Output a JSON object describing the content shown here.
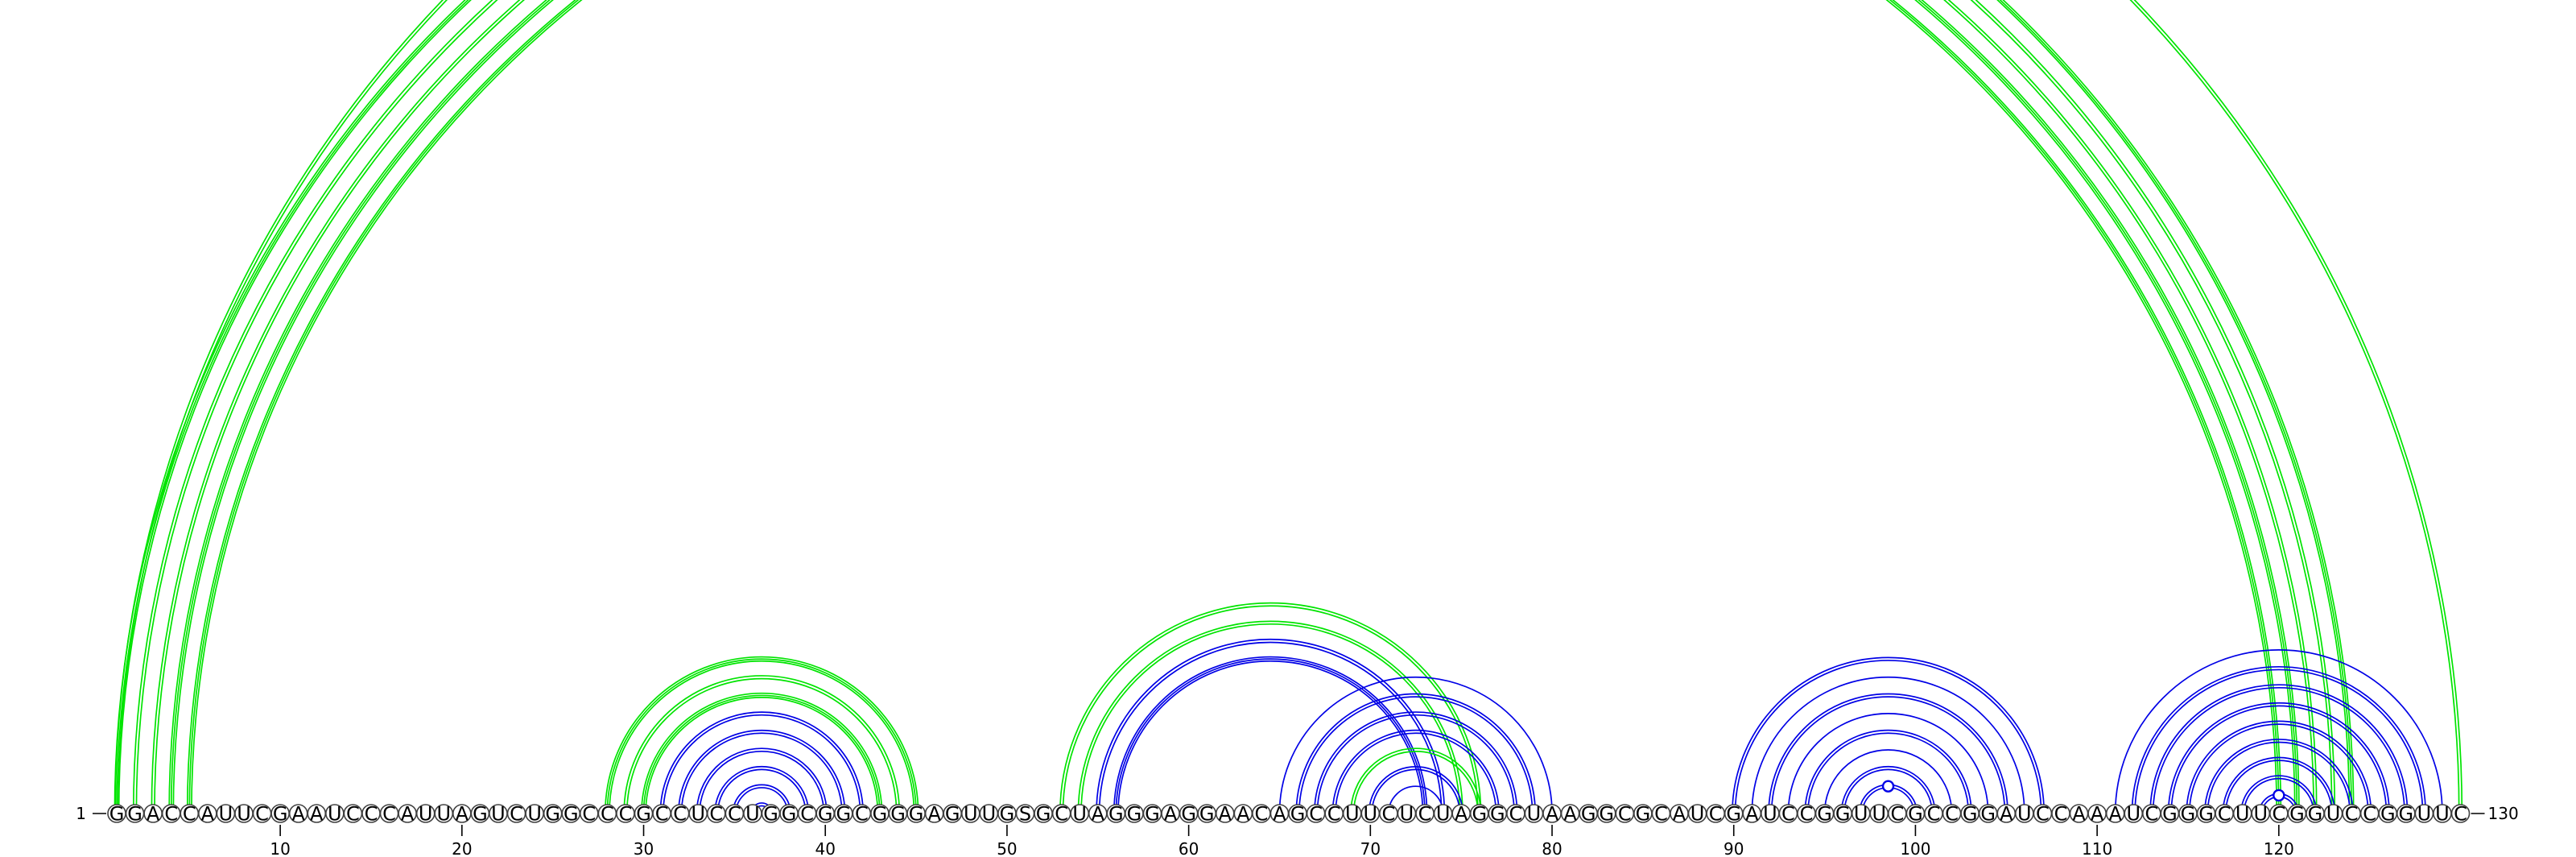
{
  "sequence": "GGACCAUUCGAAUCCCAUUAGUCUGGCCCGCCUCCUGGCGGCGGGAGUUGSGCUAGGGAGGAACAGCCUUCUCUAGGCUAAGGCGCAUCGAUCCGGUUCGCCGGAUCCAAAUCGGGCUUCGGUCCGGUUC",
  "start_label": "1",
  "end_label": "130",
  "ticks": [
    "10",
    "20",
    "30",
    "40",
    "50",
    "60",
    "70",
    "80",
    "90",
    "100",
    "110",
    "120"
  ],
  "colors": {
    "green": "#00e400",
    "blue": "#0000e6",
    "circle_stroke": "#404040"
  },
  "arcs": [
    {
      "i": 1,
      "j": 124,
      "color": "green",
      "lines": 3
    },
    {
      "i": 2,
      "j": 123,
      "color": "green",
      "lines": 2
    },
    {
      "i": 3,
      "j": 122,
      "color": "green",
      "lines": 2
    },
    {
      "i": 4,
      "j": 121,
      "color": "green",
      "lines": 3
    },
    {
      "i": 5,
      "j": 120,
      "color": "green",
      "lines": 3
    },
    {
      "i": 28,
      "j": 45,
      "color": "green",
      "lines": 3
    },
    {
      "i": 29,
      "j": 44,
      "color": "green",
      "lines": 2
    },
    {
      "i": 30,
      "j": 43,
      "color": "green",
      "lines": 3
    },
    {
      "i": 31,
      "j": 42,
      "color": "blue",
      "lines": 2
    },
    {
      "i": 32,
      "j": 41,
      "color": "blue",
      "lines": 2
    },
    {
      "i": 33,
      "j": 40,
      "color": "blue",
      "lines": 2
    },
    {
      "i": 34,
      "j": 39,
      "color": "blue",
      "lines": 2
    },
    {
      "i": 35,
      "j": 38,
      "color": "blue",
      "lines": 2
    },
    {
      "i": 36,
      "j": 37,
      "color": "blue",
      "lines": 2
    },
    {
      "i": 53,
      "j": 76,
      "color": "green",
      "lines": 2
    },
    {
      "i": 54,
      "j": 75,
      "color": "green",
      "lines": 2
    },
    {
      "i": 55,
      "j": 74,
      "color": "blue",
      "lines": 2
    },
    {
      "i": 56,
      "j": 73,
      "color": "blue",
      "lines": 3
    },
    {
      "i": 65,
      "j": 80,
      "color": "blue",
      "lines": 1
    },
    {
      "i": 66,
      "j": 79,
      "color": "blue",
      "lines": 2
    },
    {
      "i": 67,
      "j": 78,
      "color": "blue",
      "lines": 2
    },
    {
      "i": 68,
      "j": 77,
      "color": "blue",
      "lines": 2
    },
    {
      "i": 69,
      "j": 76,
      "color": "green",
      "lines": 2
    },
    {
      "i": 70,
      "j": 75,
      "color": "blue",
      "lines": 2
    },
    {
      "i": 71,
      "j": 74,
      "color": "blue",
      "lines": 1
    },
    {
      "i": 90,
      "j": 107,
      "color": "blue",
      "lines": 2
    },
    {
      "i": 91,
      "j": 106,
      "color": "blue",
      "lines": 1
    },
    {
      "i": 92,
      "j": 105,
      "color": "blue",
      "lines": 2
    },
    {
      "i": 93,
      "j": 104,
      "color": "blue",
      "lines": 1
    },
    {
      "i": 94,
      "j": 103,
      "color": "blue",
      "lines": 2
    },
    {
      "i": 95,
      "j": 102,
      "color": "blue",
      "lines": 1
    },
    {
      "i": 96,
      "j": 101,
      "color": "blue",
      "lines": 2
    },
    {
      "i": 97,
      "j": 100,
      "color": "blue",
      "lines": 2,
      "marker": true
    },
    {
      "i": 111,
      "j": 129,
      "color": "blue",
      "lines": 1
    },
    {
      "i": 112,
      "j": 128,
      "color": "blue",
      "lines": 2
    },
    {
      "i": 113,
      "j": 127,
      "color": "blue",
      "lines": 2
    },
    {
      "i": 114,
      "j": 126,
      "color": "blue",
      "lines": 2
    },
    {
      "i": 115,
      "j": 125,
      "color": "blue",
      "lines": 2
    },
    {
      "i": 116,
      "j": 124,
      "color": "blue",
      "lines": 2
    },
    {
      "i": 117,
      "j": 123,
      "color": "blue",
      "lines": 2
    },
    {
      "i": 118,
      "j": 122,
      "color": "blue",
      "lines": 2
    },
    {
      "i": 119,
      "j": 121,
      "color": "blue",
      "lines": 2,
      "marker": true
    },
    {
      "i": 1,
      "j": 130,
      "color": "green",
      "lines": 2,
      "marker": true
    }
  ]
}
